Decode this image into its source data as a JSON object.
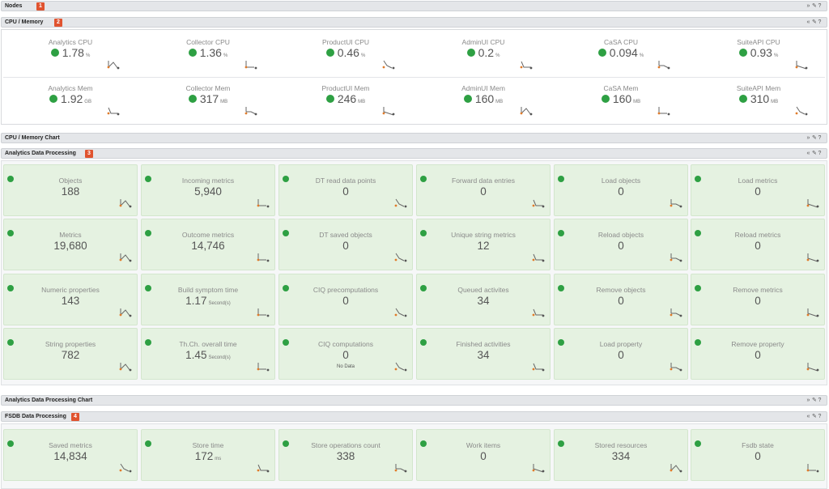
{
  "headers": {
    "nodes": {
      "title": "Nodes",
      "badge": "1"
    },
    "cpu_memory": {
      "title": "CPU / Memory",
      "badge": "2"
    },
    "cpu_memory_chart": {
      "title": "CPU / Memory Chart"
    },
    "analytics": {
      "title": "Analytics Data Processing",
      "badge": "3"
    },
    "analytics_chart": {
      "title": "Analytics Data Processing Chart"
    },
    "fsdb": {
      "title": "FSDB Data Processing",
      "badge": "4"
    }
  },
  "controls": {
    "expand": "»",
    "collapse": "«",
    "edit": "✎",
    "help": "?"
  },
  "status_color": "#2ea043",
  "cpu": [
    {
      "label": "Analytics CPU",
      "value": "1.78",
      "unit": "%"
    },
    {
      "label": "Collector CPU",
      "value": "1.36",
      "unit": "%"
    },
    {
      "label": "ProductUI CPU",
      "value": "0.46",
      "unit": "%"
    },
    {
      "label": "AdminUI CPU",
      "value": "0.2",
      "unit": "%"
    },
    {
      "label": "CaSA CPU",
      "value": "0.094",
      "unit": "%"
    },
    {
      "label": "SuiteAPI CPU",
      "value": "0.93",
      "unit": "%"
    }
  ],
  "mem": [
    {
      "label": "Analytics Mem",
      "value": "1.92",
      "unit": "GB"
    },
    {
      "label": "Collector Mem",
      "value": "317",
      "unit": "MB"
    },
    {
      "label": "ProductUI Mem",
      "value": "246",
      "unit": "MB"
    },
    {
      "label": "AdminUI Mem",
      "value": "160",
      "unit": "MB"
    },
    {
      "label": "CaSA Mem",
      "value": "160",
      "unit": "MB"
    },
    {
      "label": "SuiteAPI Mem",
      "value": "310",
      "unit": "MB"
    }
  ],
  "analytics_tiles": [
    [
      {
        "label": "Objects",
        "value": "188"
      },
      {
        "label": "Incoming metrics",
        "value": "5,940"
      },
      {
        "label": "DT read data points",
        "value": "0"
      },
      {
        "label": "Forward data entries",
        "value": "0"
      },
      {
        "label": "Load objects",
        "value": "0"
      },
      {
        "label": "Load metrics",
        "value": "0"
      }
    ],
    [
      {
        "label": "Metrics",
        "value": "19,680"
      },
      {
        "label": "Outcome metrics",
        "value": "14,746"
      },
      {
        "label": "DT saved objects",
        "value": "0"
      },
      {
        "label": "Unique string metrics",
        "value": "12"
      },
      {
        "label": "Reload objects",
        "value": "0"
      },
      {
        "label": "Reload metrics",
        "value": "0"
      }
    ],
    [
      {
        "label": "Numeric properties",
        "value": "143"
      },
      {
        "label": "Build symptom time",
        "value": "1.17",
        "unit": "Second(s)"
      },
      {
        "label": "CIQ precomputations",
        "value": "0"
      },
      {
        "label": "Queued activites",
        "value": "34"
      },
      {
        "label": "Remove objects",
        "value": "0"
      },
      {
        "label": "Remove metrics",
        "value": "0"
      }
    ],
    [
      {
        "label": "String properties",
        "value": "782"
      },
      {
        "label": "Th.Ch. overall time",
        "value": "1.45",
        "unit": "Second(s)"
      },
      {
        "label": "CIQ computations",
        "value": "0",
        "note": "No Data"
      },
      {
        "label": "Finished activities",
        "value": "34"
      },
      {
        "label": "Load property",
        "value": "0"
      },
      {
        "label": "Remove property",
        "value": "0"
      }
    ]
  ],
  "fsdb_tiles": [
    {
      "label": "Saved metrics",
      "value": "14,834"
    },
    {
      "label": "Store time",
      "value": "172",
      "unit": "ms"
    },
    {
      "label": "Store operations count",
      "value": "338"
    },
    {
      "label": "Work items",
      "value": "0"
    },
    {
      "label": "Stored resources",
      "value": "334"
    },
    {
      "label": "Fsdb state",
      "value": "0"
    }
  ]
}
